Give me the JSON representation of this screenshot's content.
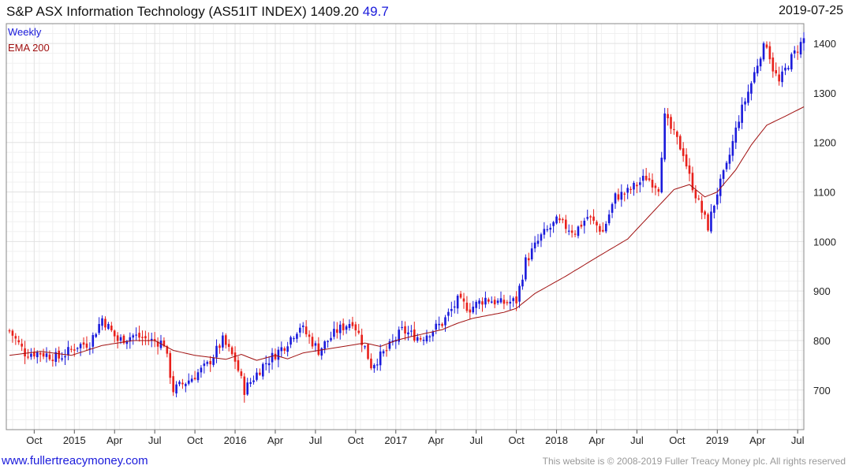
{
  "header": {
    "title_prefix": "S&P ASX Information Technology (AS51IT INDEX) 1409.20",
    "change": "49.7",
    "date": "2019-07-25"
  },
  "footer": {
    "left": "www.fullertreacymoney.com",
    "right": "This website is © 2008-2019 Fuller Treacy Money plc. All rights reserved"
  },
  "colors": {
    "up": "#1a1adb",
    "down": "#e8201b",
    "ema": "#a01010",
    "grid": "#e2e2e2"
  },
  "chart_data": {
    "type": "candlestick",
    "frequency": "Weekly",
    "legend": [
      "Weekly",
      "EMA 200"
    ],
    "ylim": [
      620,
      1440
    ],
    "y_ticks": [
      700,
      800,
      900,
      1000,
      1100,
      1200,
      1300,
      1400
    ],
    "x_ticks": [
      {
        "label": "Oct",
        "t": 8
      },
      {
        "label": "2015",
        "t": 21
      },
      {
        "label": "Apr",
        "t": 34
      },
      {
        "label": "Jul",
        "t": 47
      },
      {
        "label": "Oct",
        "t": 60
      },
      {
        "label": "2016",
        "t": 73
      },
      {
        "label": "Apr",
        "t": 86
      },
      {
        "label": "Jul",
        "t": 99
      },
      {
        "label": "Oct",
        "t": 112
      },
      {
        "label": "2017",
        "t": 125
      },
      {
        "label": "Apr",
        "t": 138
      },
      {
        "label": "Jul",
        "t": 151
      },
      {
        "label": "Oct",
        "t": 164
      },
      {
        "label": "2018",
        "t": 177
      },
      {
        "label": "Apr",
        "t": 190
      },
      {
        "label": "Jul",
        "t": 203
      },
      {
        "label": "Oct",
        "t": 216
      },
      {
        "label": "2019",
        "t": 229
      },
      {
        "label": "Apr",
        "t": 242
      },
      {
        "label": "Jul",
        "t": 255
      }
    ],
    "close_anchors": [
      [
        0,
        820
      ],
      [
        5,
        775
      ],
      [
        10,
        775
      ],
      [
        16,
        765
      ],
      [
        22,
        790
      ],
      [
        26,
        795
      ],
      [
        30,
        845
      ],
      [
        35,
        800
      ],
      [
        40,
        810
      ],
      [
        46,
        800
      ],
      [
        50,
        795
      ],
      [
        53,
        700
      ],
      [
        58,
        720
      ],
      [
        64,
        750
      ],
      [
        69,
        800
      ],
      [
        73,
        760
      ],
      [
        76,
        700
      ],
      [
        82,
        750
      ],
      [
        89,
        790
      ],
      [
        94,
        830
      ],
      [
        100,
        780
      ],
      [
        106,
        820
      ],
      [
        111,
        840
      ],
      [
        115,
        785
      ],
      [
        117,
        750
      ],
      [
        122,
        780
      ],
      [
        127,
        820
      ],
      [
        133,
        805
      ],
      [
        140,
        835
      ],
      [
        145,
        880
      ],
      [
        149,
        865
      ],
      [
        154,
        885
      ],
      [
        159,
        875
      ],
      [
        164,
        880
      ],
      [
        167,
        960
      ],
      [
        172,
        1010
      ],
      [
        177,
        1040
      ],
      [
        183,
        1020
      ],
      [
        187,
        1050
      ],
      [
        192,
        1020
      ],
      [
        196,
        1090
      ],
      [
        200,
        1100
      ],
      [
        206,
        1130
      ],
      [
        210,
        1110
      ],
      [
        212,
        1250
      ],
      [
        215,
        1215
      ],
      [
        218,
        1180
      ],
      [
        220,
        1130
      ],
      [
        224,
        1060
      ],
      [
        226,
        1030
      ],
      [
        229,
        1100
      ],
      [
        232,
        1150
      ],
      [
        236,
        1250
      ],
      [
        240,
        1320
      ],
      [
        243,
        1380
      ],
      [
        245,
        1400
      ],
      [
        247,
        1350
      ],
      [
        249,
        1320
      ],
      [
        252,
        1360
      ],
      [
        255,
        1390
      ],
      [
        257,
        1409
      ]
    ],
    "ema200_anchors": [
      [
        0,
        770
      ],
      [
        10,
        778
      ],
      [
        20,
        770
      ],
      [
        30,
        790
      ],
      [
        40,
        800
      ],
      [
        47,
        800
      ],
      [
        53,
        780
      ],
      [
        60,
        770
      ],
      [
        70,
        762
      ],
      [
        75,
        772
      ],
      [
        80,
        760
      ],
      [
        86,
        770
      ],
      [
        90,
        763
      ],
      [
        95,
        775
      ],
      [
        100,
        780
      ],
      [
        110,
        790
      ],
      [
        115,
        795
      ],
      [
        120,
        788
      ],
      [
        125,
        800
      ],
      [
        130,
        808
      ],
      [
        140,
        822
      ],
      [
        145,
        835
      ],
      [
        150,
        845
      ],
      [
        160,
        857
      ],
      [
        164,
        865
      ],
      [
        170,
        895
      ],
      [
        180,
        930
      ],
      [
        190,
        968
      ],
      [
        200,
        1005
      ],
      [
        206,
        1045
      ],
      [
        212,
        1085
      ],
      [
        215,
        1105
      ],
      [
        220,
        1115
      ],
      [
        225,
        1090
      ],
      [
        229,
        1100
      ],
      [
        235,
        1145
      ],
      [
        240,
        1195
      ],
      [
        245,
        1235
      ],
      [
        250,
        1250
      ],
      [
        257,
        1272
      ]
    ]
  }
}
